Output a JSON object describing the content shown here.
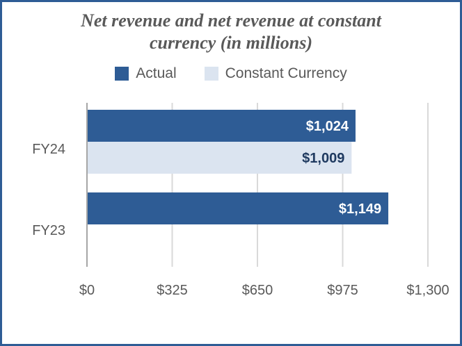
{
  "chart_data": {
    "type": "bar",
    "orientation": "horizontal",
    "title": "Net revenue and net revenue at constant currency (in millions)",
    "title_lines": [
      "Net revenue and net revenue at constant",
      "currency (in millions)"
    ],
    "categories": [
      "FY24",
      "FY23"
    ],
    "series": [
      {
        "name": "Actual",
        "color": "#2e5c95",
        "label_color": "#ffffff",
        "values": [
          1024,
          1149
        ],
        "labels": [
          "$1,024",
          "$1,149"
        ]
      },
      {
        "name": "Constant Currency",
        "color": "#dbe4f0",
        "label_color": "#1f3a60",
        "values": [
          1009,
          null
        ],
        "labels": [
          "$1,009",
          ""
        ]
      }
    ],
    "xlim": [
      0,
      1300
    ],
    "xticks": [
      0,
      325,
      650,
      975,
      1300
    ],
    "xtick_labels": [
      "$0",
      "$325",
      "$650",
      "$975",
      "$1,300"
    ],
    "grid": true,
    "legend_position": "top"
  },
  "colors": {
    "border": "#2e5c95",
    "gridline": "#d9d9d9",
    "axis": "#a6a6a6"
  }
}
